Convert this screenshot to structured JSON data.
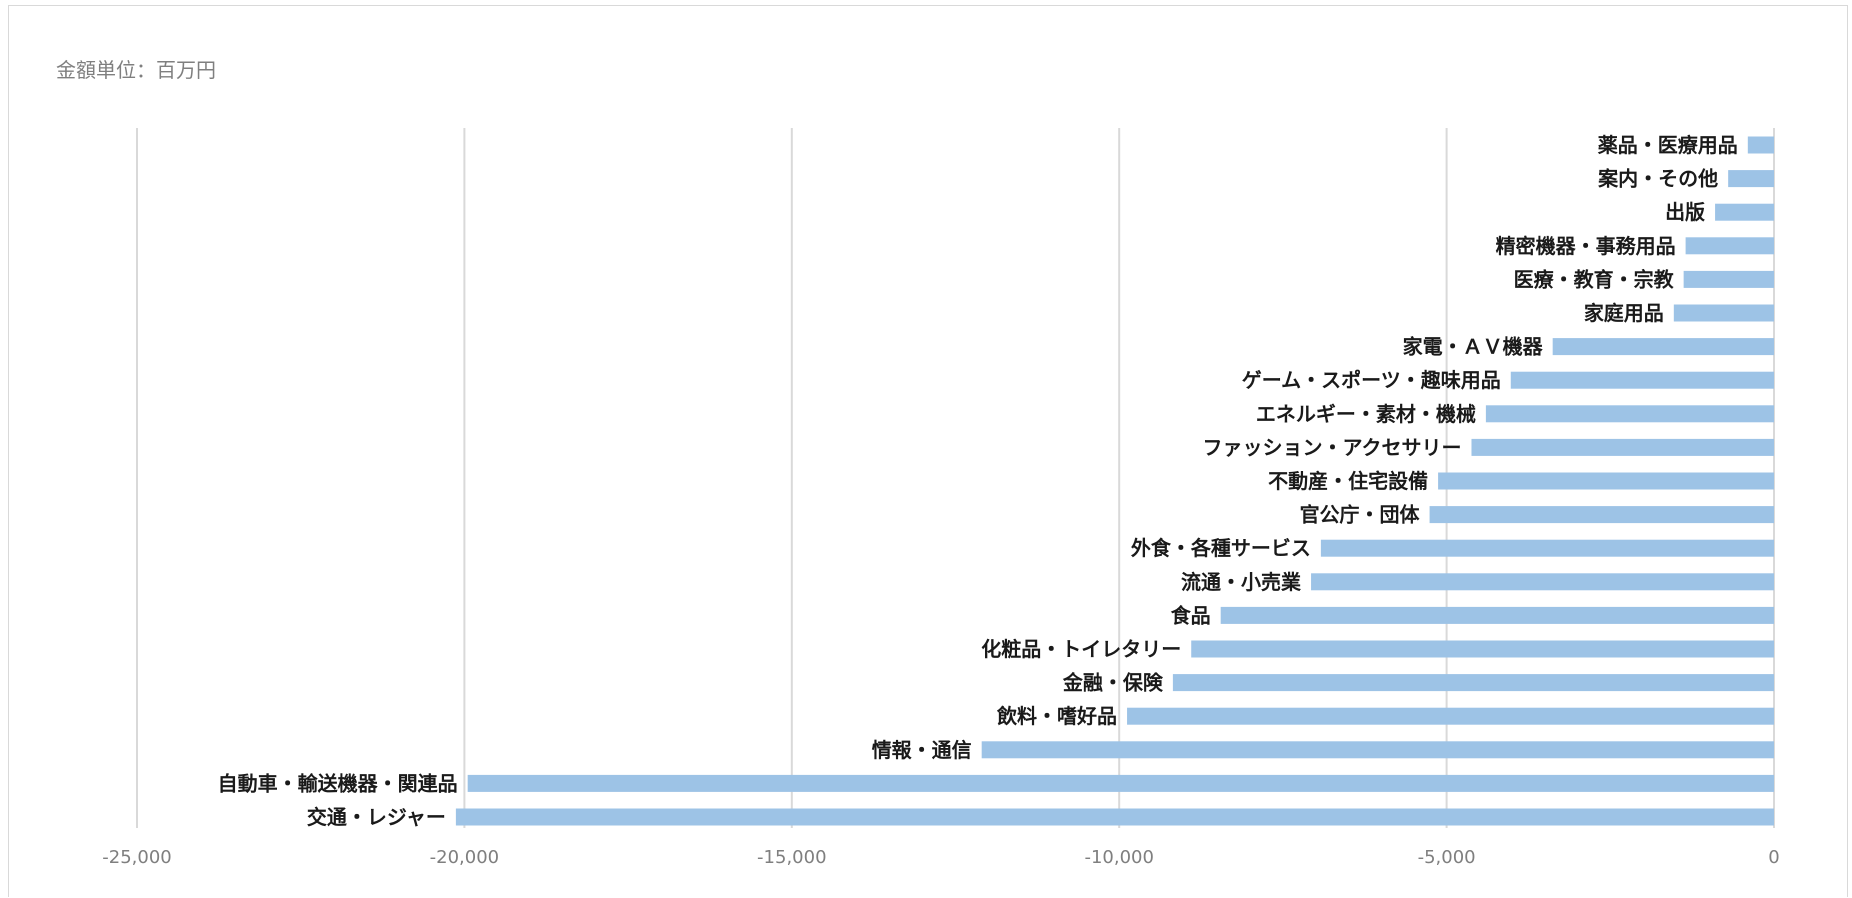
{
  "chart_data": {
    "type": "bar",
    "orientation": "horizontal",
    "unit_note": "金額単位：百万円",
    "categories": [
      "薬品・医療用品",
      "案内・その他",
      "出版",
      "精密機器・事務用品",
      "医療・教育・宗教",
      "家庭用品",
      "家電・ＡＶ機器",
      "ゲーム・スポーツ・趣味用品",
      "エネルギー・素材・機械",
      "ファッション・アクセサリー",
      "不動産・住宅設備",
      "官公庁・団体",
      "外食・各種サービス",
      "流通・小売業",
      "食品",
      "化粧品・トイレタリー",
      "金融・保険",
      "飲料・嗜好品",
      "情報・通信",
      "自動車・輸送機器・関連品",
      "交通・レジャー"
    ],
    "values": [
      -400,
      -700,
      -900,
      -1350,
      -1380,
      -1530,
      -3380,
      -4020,
      -4400,
      -4620,
      -5130,
      -5260,
      -6920,
      -7070,
      -8450,
      -8900,
      -9180,
      -9880,
      -12100,
      -19950,
      -20130
    ],
    "xlim": [
      -25000,
      0
    ],
    "xticks": [
      "-25,000",
      "-20,000",
      "-15,000",
      "-10,000",
      "-5,000",
      "0"
    ],
    "grid": true,
    "legend": "none",
    "bar_color": "#9dc3e6"
  }
}
